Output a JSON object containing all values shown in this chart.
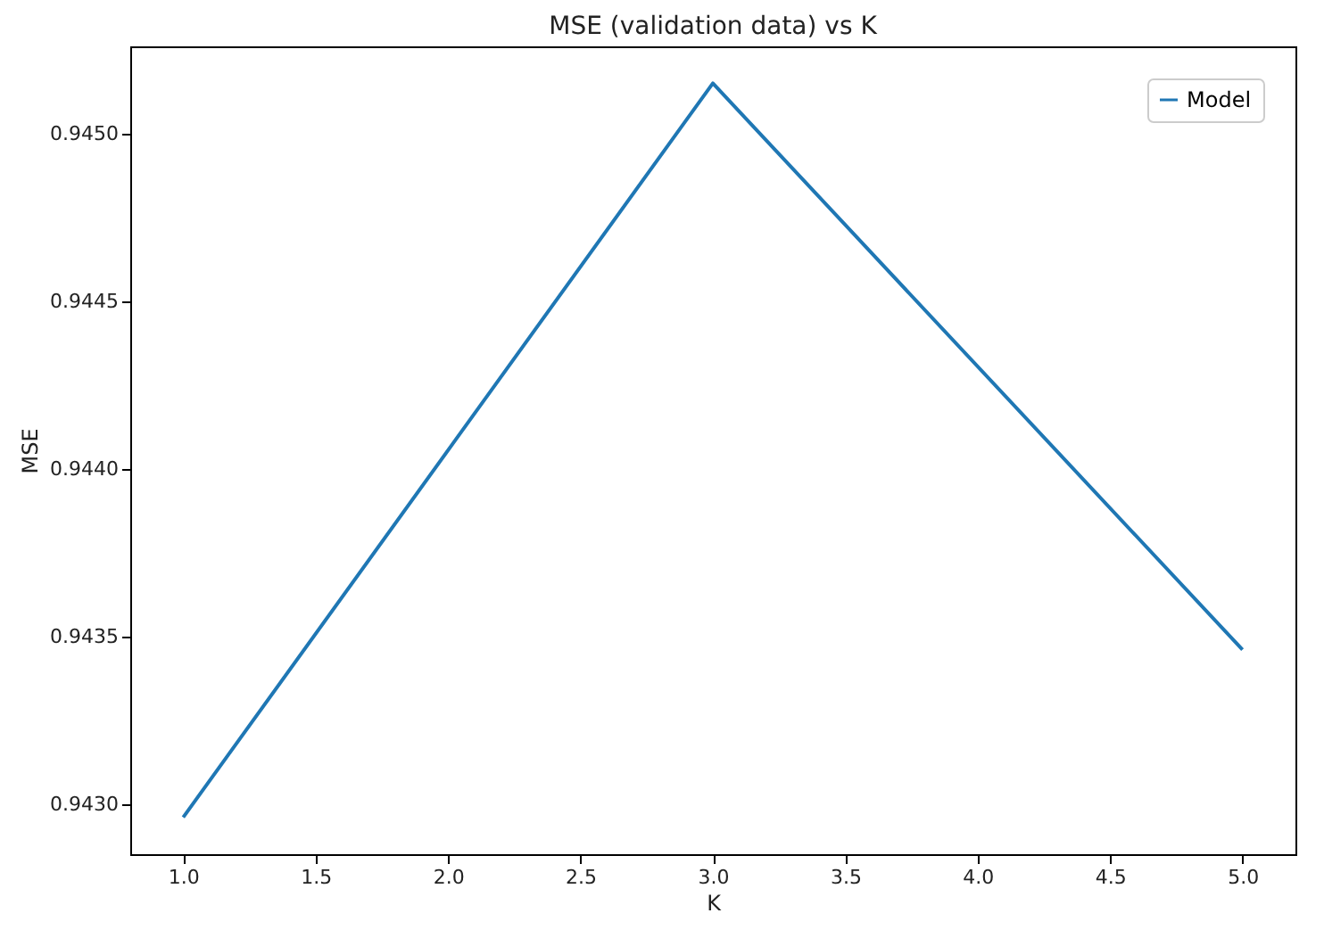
{
  "chart_data": {
    "type": "line",
    "title": "MSE (validation data) vs K",
    "xlabel": "K",
    "ylabel": "MSE",
    "x": [
      1,
      3,
      5
    ],
    "series": [
      {
        "name": "Model",
        "color": "#1f77b4",
        "values": [
          0.94296,
          0.94515,
          0.94346
        ]
      }
    ],
    "xlim": [
      0.8,
      5.2
    ],
    "xticks": [
      {
        "value": 1,
        "label": "1.0"
      },
      {
        "value": 1.5,
        "label": "1.5"
      },
      {
        "value": 2,
        "label": "2.0"
      },
      {
        "value": 2.5,
        "label": "2.5"
      },
      {
        "value": 3,
        "label": "3.0"
      },
      {
        "value": 3.5,
        "label": "3.5"
      },
      {
        "value": 4,
        "label": "4.0"
      },
      {
        "value": 4.5,
        "label": "4.5"
      },
      {
        "value": 5,
        "label": "5.0"
      }
    ],
    "ylim": [
      0.94285,
      0.94526
    ],
    "yticks": [
      {
        "value": 0.943,
        "label": "0.9430"
      },
      {
        "value": 0.9435,
        "label": "0.9435"
      },
      {
        "value": 0.944,
        "label": "0.9440"
      },
      {
        "value": 0.9445,
        "label": "0.9445"
      },
      {
        "value": 0.945,
        "label": "0.9450"
      }
    ],
    "grid": false,
    "legend": "top right",
    "marker": "none",
    "line_style": "solid"
  }
}
